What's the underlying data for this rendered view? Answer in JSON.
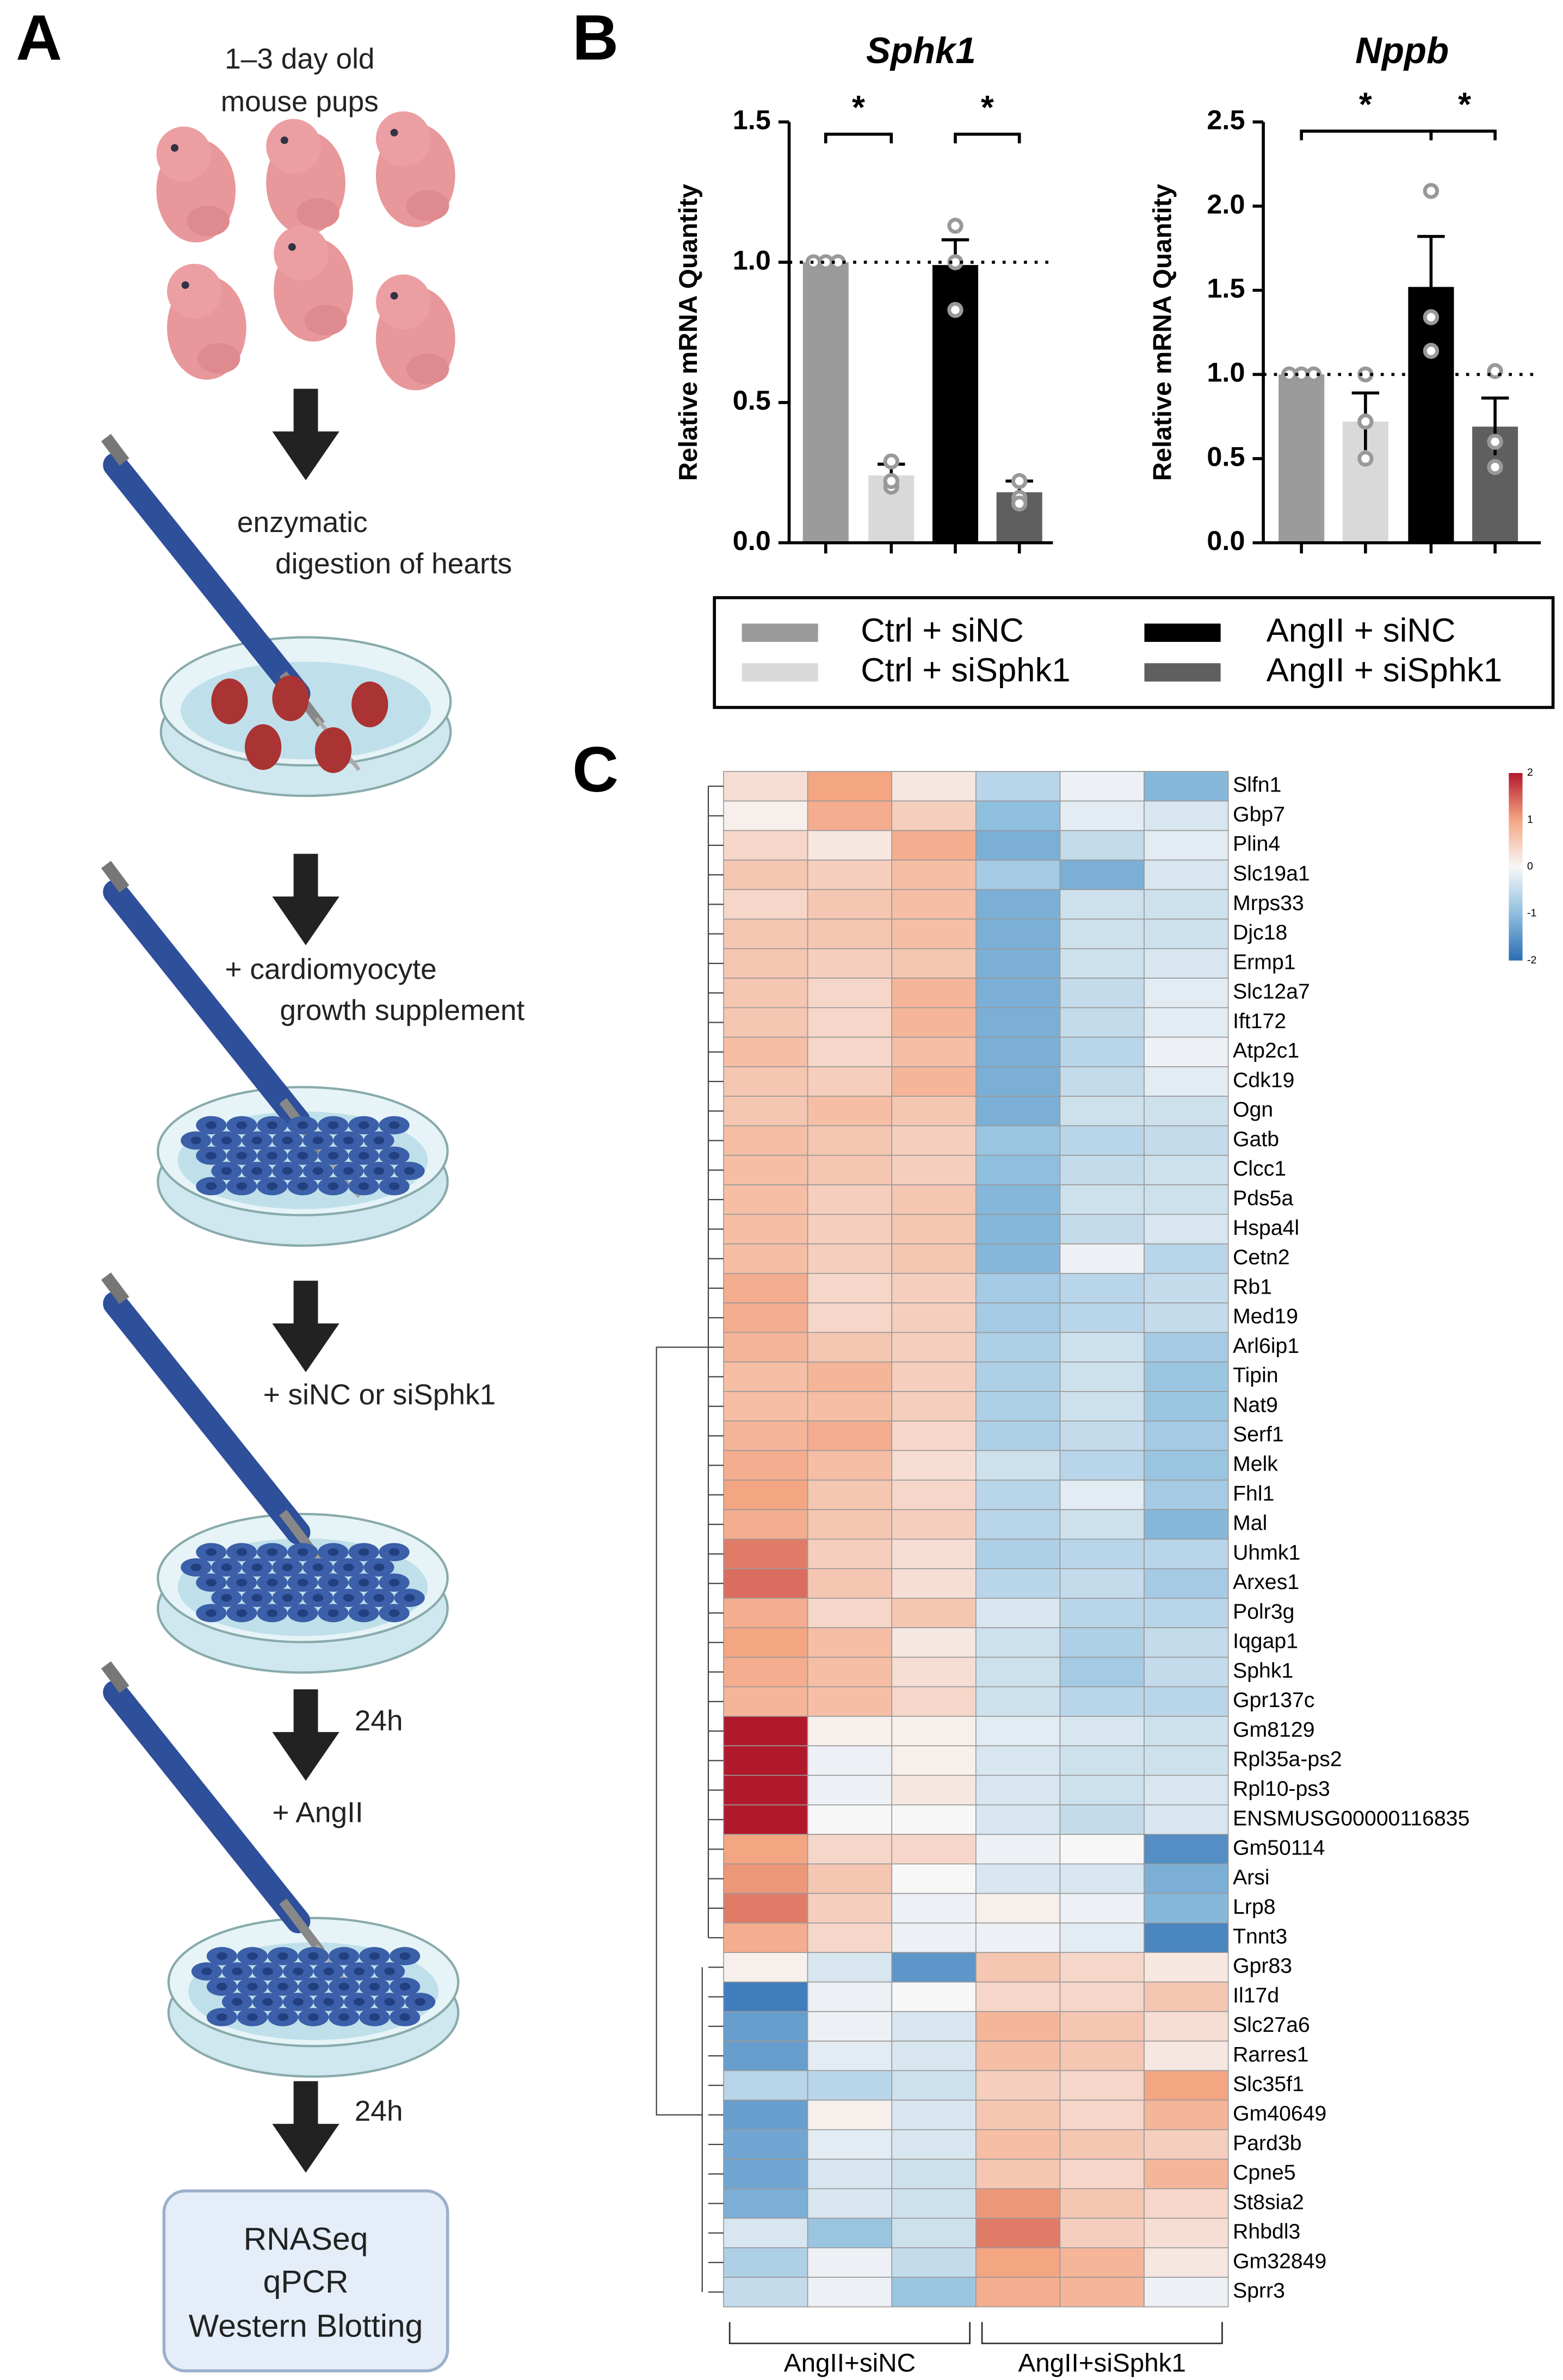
{
  "panel_labels": [
    "A",
    "B",
    "C"
  ],
  "panel_a": {
    "steps": [
      "1–3 day old",
      "mouse pups",
      "enzymatic",
      "digestion of hearts",
      "+ cardiomyocyte",
      "growth supplement",
      "+ siNC or siSphk1",
      "24h",
      "+ AngII",
      "24h"
    ],
    "outputs": [
      "RNASeq",
      "qPCR",
      "Western Blotting"
    ]
  },
  "chart_data": [
    {
      "type": "bar",
      "title": "Sphk1",
      "y_label": "Relative mRNA Quantity",
      "ylim": [
        0,
        1.5
      ],
      "yticks": [
        {
          "value": 0,
          "label": "0.0"
        },
        0.5,
        {
          "value": 1,
          "label": "1.0"
        },
        1.5
      ],
      "reference_line": 1,
      "annotations": [
        "*",
        "*"
      ],
      "series": [
        {
          "name": "Ctrl + siNC",
          "color": "#9b9b9b",
          "values": [
            1.0
          ],
          "errors": [
            0
          ],
          "points": [
            1,
            1,
            1
          ]
        },
        {
          "name": "Ctrl + siSphk1",
          "color": "#d9d9d9",
          "values": [
            0.24
          ],
          "errors": [
            0.04
          ],
          "points": [
            0.29,
            0.2,
            0.22
          ]
        },
        {
          "name": "AngII + siNC",
          "color": "#000000",
          "values": [
            0.99
          ],
          "errors": [
            0.09
          ],
          "points": [
            1.13,
            1.0,
            0.83
          ]
        },
        {
          "name": "AngII + siSphk1",
          "color": "#5f5f5f",
          "values": [
            0.18
          ],
          "errors": [
            0.04
          ],
          "points": [
            0.22,
            0.16,
            0.14
          ]
        }
      ]
    },
    {
      "type": "bar",
      "title": "Nppb",
      "y_label": "Relative mRNA Quantity",
      "ylim": [
        0,
        2.5
      ],
      "yticks": [
        {
          "value": 0,
          "label": "0.0"
        },
        0.5,
        {
          "value": 1,
          "label": "1.0"
        },
        1.5,
        {
          "value": 2,
          "label": "2.0"
        },
        2.5
      ],
      "reference_line": 1,
      "annotations": [
        "*",
        "*"
      ],
      "series": [
        {
          "color": "#9b9b9b",
          "values": [
            1.0
          ],
          "errors": [
            0
          ],
          "points": [
            1,
            1,
            1
          ]
        },
        {
          "color": "#d9d9d9",
          "values": [
            0.72
          ],
          "errors": [
            0.17
          ],
          "points": [
            1.0,
            0.72,
            0.5
          ]
        },
        {
          "color": "#000000",
          "values": [
            1.52
          ],
          "errors": [
            0.3
          ],
          "points": [
            2.09,
            1.34,
            1.14
          ]
        },
        {
          "color": "#5f5f5f",
          "values": [
            0.69
          ],
          "errors": [
            0.17
          ],
          "points": [
            1.02,
            0.6,
            0.45
          ]
        }
      ]
    },
    {
      "type": "heatmap",
      "zlim": [
        -2,
        2
      ],
      "zticks": [
        2,
        1,
        0,
        -1,
        -2
      ],
      "colors": [
        "#2c6db3",
        "#8fbfdf",
        "#f7f7f7",
        "#f4a582",
        "#b2182b"
      ],
      "column_groups": [
        "AngII+siNC",
        "AngII+siSphk1"
      ],
      "rows": [
        "Slfn1",
        "Gbp7",
        "Plin4",
        "Slc19a1",
        "Mrps33",
        "Djc18",
        "Ermp1",
        "Slc12a7",
        "Ift172",
        "Atp2c1",
        "Cdk19",
        "Ogn",
        "Gatb",
        "Clcc1",
        "Pds5a",
        "Hspa4l",
        "Cetn2",
        "Rb1",
        "Med19",
        "Arl6ip1",
        "Tipin",
        "Nat9",
        "Serf1",
        "Melk",
        "Fhl1",
        "Mal",
        "Uhmk1",
        "Arxes1",
        "Polr3g",
        "Iqgap1",
        "Sphk1",
        "Gpr137c",
        "Gm8129",
        "Rpl35a-ps2",
        "Rpl10-ps3",
        "ENSMUSG00000116835",
        "Gm50114",
        "Arsi",
        "Lrp8",
        "Tnnt3",
        "Gpr83",
        "Il17d",
        "Slc27a6",
        "Rarres1",
        "Slc35f1",
        "Gm40649",
        "Pard3b",
        "Cpne5",
        "St8sia2",
        "Rhbdl3",
        "Gm32849",
        "Sprr3"
      ],
      "values": [
        [
          0.3,
          1.0,
          0.2,
          -0.6,
          -0.1,
          -1.1
        ],
        [
          0.1,
          0.9,
          0.5,
          -1.0,
          -0.2,
          -0.3
        ],
        [
          0.4,
          0.2,
          0.9,
          -1.2,
          -0.5,
          -0.2
        ],
        [
          0.6,
          0.5,
          0.7,
          -0.8,
          -1.2,
          -0.3
        ],
        [
          0.4,
          0.6,
          0.7,
          -1.2,
          -0.4,
          -0.4
        ],
        [
          0.6,
          0.6,
          0.7,
          -1.2,
          -0.4,
          -0.4
        ],
        [
          0.6,
          0.5,
          0.6,
          -1.2,
          -0.4,
          -0.3
        ],
        [
          0.6,
          0.4,
          0.8,
          -1.2,
          -0.5,
          -0.2
        ],
        [
          0.6,
          0.4,
          0.8,
          -1.2,
          -0.5,
          -0.2
        ],
        [
          0.7,
          0.4,
          0.7,
          -1.2,
          -0.6,
          -0.1
        ],
        [
          0.6,
          0.5,
          0.8,
          -1.2,
          -0.5,
          -0.2
        ],
        [
          0.6,
          0.7,
          0.6,
          -1.2,
          -0.4,
          -0.4
        ],
        [
          0.7,
          0.6,
          0.5,
          -0.9,
          -0.6,
          -0.5
        ],
        [
          0.7,
          0.6,
          0.5,
          -1.0,
          -0.5,
          -0.4
        ],
        [
          0.7,
          0.5,
          0.6,
          -1.1,
          -0.4,
          -0.4
        ],
        [
          0.7,
          0.5,
          0.6,
          -1.1,
          -0.5,
          -0.3
        ],
        [
          0.7,
          0.5,
          0.6,
          -1.1,
          -0.1,
          -0.6
        ],
        [
          0.9,
          0.4,
          0.5,
          -0.8,
          -0.6,
          -0.5
        ],
        [
          0.9,
          0.4,
          0.5,
          -0.8,
          -0.6,
          -0.5
        ],
        [
          0.8,
          0.6,
          0.5,
          -0.7,
          -0.4,
          -0.8
        ],
        [
          0.7,
          0.8,
          0.5,
          -0.7,
          -0.4,
          -0.9
        ],
        [
          0.7,
          0.7,
          0.5,
          -0.7,
          -0.4,
          -0.9
        ],
        [
          0.8,
          0.9,
          0.4,
          -0.7,
          -0.5,
          -0.8
        ],
        [
          0.9,
          0.7,
          0.3,
          -0.4,
          -0.6,
          -0.9
        ],
        [
          1.0,
          0.6,
          0.4,
          -0.6,
          -0.2,
          -0.8
        ],
        [
          0.9,
          0.6,
          0.5,
          -0.6,
          -0.4,
          -1.1
        ],
        [
          1.3,
          0.5,
          0.3,
          -0.7,
          -0.6,
          -0.6
        ],
        [
          1.4,
          0.6,
          0.3,
          -0.6,
          -0.5,
          -0.8
        ],
        [
          0.9,
          0.4,
          0.6,
          -0.3,
          -0.6,
          -0.6
        ],
        [
          1.0,
          0.7,
          0.2,
          -0.4,
          -0.7,
          -0.5
        ],
        [
          0.9,
          0.7,
          0.3,
          -0.4,
          -0.8,
          -0.5
        ],
        [
          0.8,
          0.7,
          0.4,
          -0.4,
          -0.6,
          -0.6
        ],
        [
          2.0,
          0.1,
          0.1,
          -0.2,
          -0.3,
          -0.4
        ],
        [
          2.0,
          -0.1,
          0.1,
          -0.3,
          -0.4,
          -0.4
        ],
        [
          2.0,
          -0.1,
          0.2,
          -0.3,
          -0.4,
          -0.3
        ],
        [
          2.0,
          0.0,
          0.0,
          -0.3,
          -0.5,
          -0.3
        ],
        [
          1.0,
          0.4,
          0.4,
          -0.1,
          0.0,
          -1.6
        ],
        [
          1.1,
          0.6,
          0.0,
          -0.3,
          -0.3,
          -1.2
        ],
        [
          1.3,
          0.5,
          -0.1,
          0.1,
          -0.1,
          -1.1
        ],
        [
          0.9,
          0.4,
          -0.1,
          -0.1,
          -0.2,
          -1.7
        ],
        [
          0.1,
          -0.3,
          -1.5,
          0.6,
          0.4,
          0.2
        ],
        [
          -1.8,
          -0.1,
          0.0,
          0.4,
          0.4,
          0.6
        ],
        [
          -1.4,
          -0.1,
          -0.3,
          0.8,
          0.6,
          0.3
        ],
        [
          -1.4,
          -0.2,
          -0.3,
          0.7,
          0.6,
          0.2
        ],
        [
          -0.6,
          -0.6,
          -0.4,
          0.5,
          0.4,
          1.0
        ],
        [
          -1.4,
          0.1,
          -0.3,
          0.6,
          0.4,
          0.8
        ],
        [
          -1.3,
          -0.2,
          -0.3,
          0.7,
          0.6,
          0.5
        ],
        [
          -1.3,
          -0.3,
          -0.4,
          0.6,
          0.4,
          0.8
        ],
        [
          -1.2,
          -0.3,
          -0.4,
          1.1,
          0.6,
          0.4
        ],
        [
          -0.3,
          -0.9,
          -0.4,
          1.3,
          0.5,
          0.3
        ],
        [
          -0.7,
          -0.1,
          -0.5,
          1.0,
          0.8,
          0.2
        ],
        [
          -0.5,
          -0.1,
          -0.9,
          0.9,
          0.8,
          -0.1
        ]
      ]
    }
  ]
}
